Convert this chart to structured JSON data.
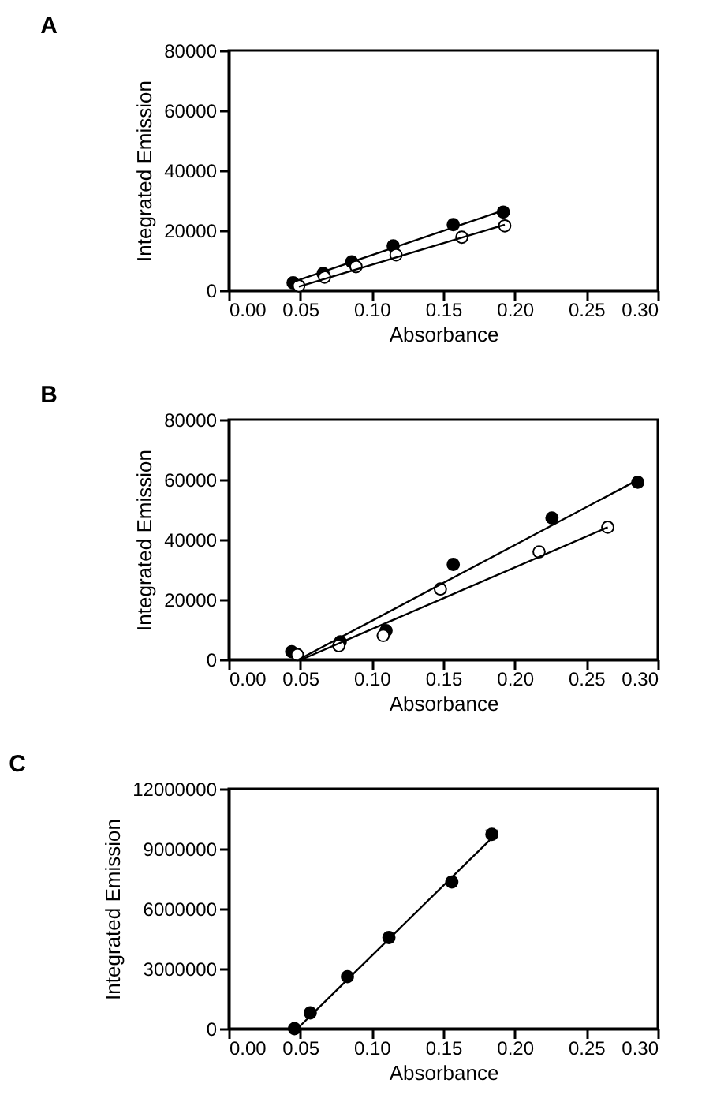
{
  "chart_data": [
    {
      "type": "scatter",
      "title": "A",
      "xlabel": "Absorbance",
      "ylabel": "Integrated Emission",
      "xlim": [
        0,
        0.3
      ],
      "ylim": [
        0,
        80000
      ],
      "xticks": [
        {
          "value": 0,
          "label": "0.00"
        },
        {
          "value": 0.05,
          "label": "0.05"
        },
        {
          "value": 0.1,
          "label": "0.10"
        },
        {
          "value": 0.15,
          "label": "0.15"
        },
        {
          "value": 0.2,
          "label": "0.20"
        },
        {
          "value": 0.25,
          "label": "0.25"
        },
        {
          "value": 0.3,
          "label": "0.30"
        }
      ],
      "yticks": [
        0,
        20000,
        40000,
        60000,
        80000
      ],
      "grid": false,
      "marker": "circle",
      "series": [
        {
          "color": "#000000",
          "x": [
            0.045,
            0.066,
            0.086,
            0.115,
            0.157,
            0.192
          ],
          "values": [
            2500,
            5600,
            9500,
            14800,
            21900,
            26100
          ]
        },
        {
          "color": "#ffffff",
          "x": [
            0.049,
            0.067,
            0.089,
            0.117,
            0.163,
            0.193
          ],
          "values": [
            1500,
            4400,
            7900,
            11800,
            17700,
            21500
          ]
        },
        {
          "type": "line",
          "marker": "none",
          "color": "#000000",
          "x": [
            0.045,
            0.193
          ],
          "values": [
            2800,
            26800
          ]
        },
        {
          "type": "line",
          "marker": "none",
          "color": "#000000",
          "x": [
            0.049,
            0.193
          ],
          "values": [
            1200,
            21900
          ]
        }
      ]
    },
    {
      "type": "scatter",
      "title": "B",
      "xlabel": "Absorbance",
      "ylabel": "Integrated Emission",
      "xlim": [
        0,
        0.3
      ],
      "ylim": [
        0,
        80000
      ],
      "xticks": [
        {
          "value": 0,
          "label": "0.00"
        },
        {
          "value": 0.05,
          "label": "0.05"
        },
        {
          "value": 0.1,
          "label": "0.10"
        },
        {
          "value": 0.15,
          "label": "0.15"
        },
        {
          "value": 0.2,
          "label": "0.20"
        },
        {
          "value": 0.25,
          "label": "0.25"
        },
        {
          "value": 0.3,
          "label": "0.30"
        }
      ],
      "yticks": [
        0,
        20000,
        40000,
        60000,
        80000
      ],
      "grid": false,
      "marker": "circle",
      "series": [
        {
          "color": "#000000",
          "x": [
            0.044,
            0.078,
            0.11,
            0.157,
            0.226,
            0.286
          ],
          "values": [
            2600,
            5900,
            9600,
            31700,
            47200,
            59100
          ]
        },
        {
          "color": "#ffffff",
          "x": [
            0.048,
            0.077,
            0.108,
            0.148,
            0.217,
            0.265
          ],
          "values": [
            1600,
            4600,
            8000,
            23500,
            35900,
            44100
          ]
        },
        {
          "type": "line",
          "marker": "none",
          "color": "#000000",
          "x": [
            0.049,
            0.286
          ],
          "values": [
            0,
            59900
          ]
        },
        {
          "type": "line",
          "marker": "none",
          "color": "#000000",
          "x": [
            0.051,
            0.265
          ],
          "values": [
            0,
            44100
          ]
        }
      ]
    },
    {
      "type": "scatter",
      "title": "C",
      "xlabel": "Absorbance",
      "ylabel": "Integrated Emission",
      "xlim": [
        0,
        0.3
      ],
      "ylim": [
        0,
        12000000
      ],
      "xticks": [
        {
          "value": 0,
          "label": "0.00"
        },
        {
          "value": 0.05,
          "label": "0.05"
        },
        {
          "value": 0.1,
          "label": "0.10"
        },
        {
          "value": 0.15,
          "label": "0.15"
        },
        {
          "value": 0.2,
          "label": "0.20"
        },
        {
          "value": 0.25,
          "label": "0.25"
        },
        {
          "value": 0.3,
          "label": "0.30"
        }
      ],
      "yticks": [
        0,
        3000000,
        6000000,
        9000000,
        12000000
      ],
      "grid": false,
      "marker": "circle",
      "series": [
        {
          "color": "#000000",
          "x": [
            0.046,
            0.057,
            0.083,
            0.112,
            0.156,
            0.184
          ],
          "values": [
            0,
            790000,
            2600000,
            4560000,
            7340000,
            9720000
          ],
          "errors": [
            null,
            null,
            null,
            null,
            null,
            200000
          ]
        },
        {
          "type": "line",
          "marker": "none",
          "color": "#000000",
          "x": [
            0.048,
            0.184
          ],
          "values": [
            0,
            9540000
          ]
        }
      ]
    }
  ]
}
